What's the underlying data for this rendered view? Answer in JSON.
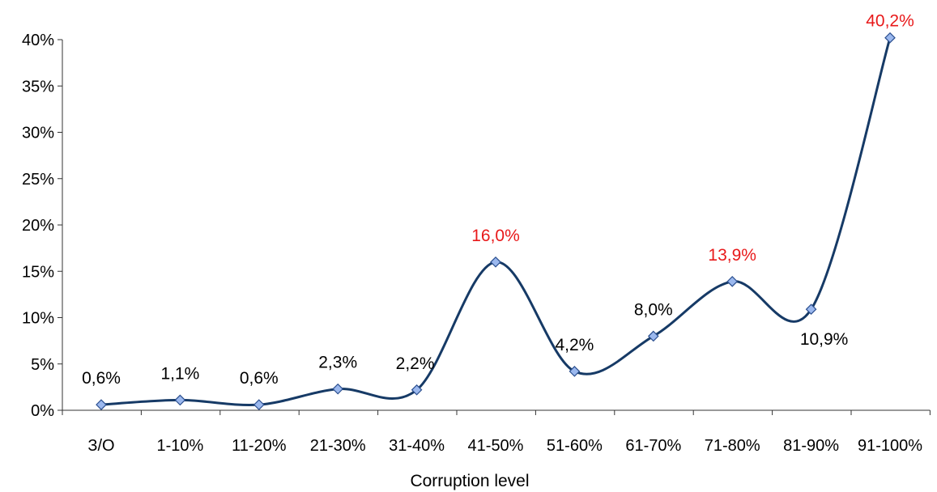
{
  "chart_data": {
    "type": "line",
    "categories": [
      "З/О",
      "1-10%",
      "11-20%",
      "21-30%",
      "31-40%",
      "41-50%",
      "51-60%",
      "61-70%",
      "71-80%",
      "81-90%",
      "91-100%"
    ],
    "series": [
      {
        "values": [
          0.6,
          1.1,
          0.6,
          2.3,
          2.2,
          16.0,
          4.2,
          8.0,
          13.9,
          10.9,
          40.2
        ],
        "data_labels": [
          "0,6%",
          "1,1%",
          "0,6%",
          "2,3%",
          "2,2%",
          "16,0%",
          "4,2%",
          "8,0%",
          "13,9%",
          "10,9%",
          "40,2%"
        ],
        "highlighted": [
          false,
          false,
          false,
          false,
          false,
          true,
          false,
          false,
          true,
          false,
          true
        ]
      }
    ],
    "xlabel": "Corruption level",
    "ylabel": "",
    "ylim": [
      0,
      40
    ],
    "yticks": [
      0,
      5,
      10,
      15,
      20,
      25,
      30,
      35,
      40
    ],
    "ytick_labels": [
      "0%",
      "5%",
      "10%",
      "15%",
      "20%",
      "25%",
      "30%",
      "35%",
      "40%"
    ],
    "smooth": true,
    "grid": false,
    "legend": "none",
    "colors": {
      "line": "#163A66",
      "marker_fill": "#9BB8EE",
      "marker_stroke": "#2B4F8F",
      "label": "#000000",
      "label_highlight": "#E8191A",
      "axis": "#333333"
    }
  }
}
